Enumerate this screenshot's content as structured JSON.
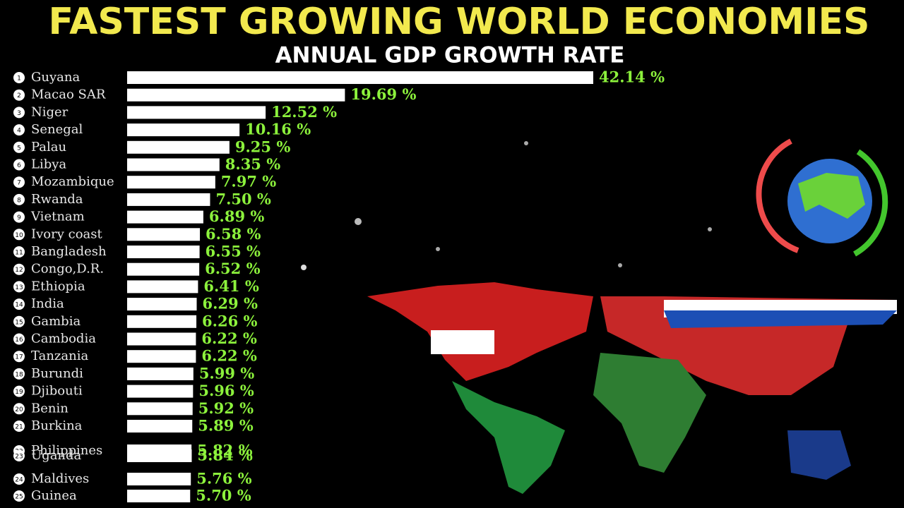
{
  "chart_data": {
    "type": "bar",
    "orientation": "horizontal",
    "title": "FASTEST GROWING WORLD ECONOMIES",
    "subtitle": "ANNUAL GDP GROWTH RATE",
    "ranks": [
      1,
      2,
      3,
      4,
      5,
      6,
      7,
      8,
      9,
      10,
      11,
      12,
      13,
      14,
      15,
      16,
      17,
      18,
      19,
      20,
      21,
      22,
      23,
      24,
      25
    ],
    "categories": [
      "Guyana",
      "Macao SAR",
      "Niger",
      "Senegal",
      "Palau",
      "Libya",
      "Mozambique",
      "Rwanda",
      "Vietnam",
      "Ivory coast",
      "Bangladesh",
      "Congo,D.R.",
      "Ethiopia",
      "India",
      "Gambia",
      "Cambodia",
      "Tanzania",
      "Burundi",
      "Djibouti",
      "Benin",
      "Burkina",
      "Philippines",
      "Uganda",
      "Maldives",
      "Guinea"
    ],
    "values": [
      42.14,
      19.69,
      12.52,
      10.16,
      9.25,
      8.35,
      7.97,
      7.5,
      6.89,
      6.58,
      6.55,
      6.52,
      6.41,
      6.29,
      6.26,
      6.22,
      6.22,
      5.99,
      5.96,
      5.92,
      5.89,
      5.82,
      5.84,
      5.76,
      5.7
    ],
    "value_labels": [
      "42.14 %",
      "19.69 %",
      "12.52 %",
      "10.16 %",
      "9.25 %",
      "8.35 %",
      "7.97 %",
      "7.50 %",
      "6.89 %",
      "6.58 %",
      "6.55 %",
      "6.52 %",
      "6.41 %",
      "6.29 %",
      "6.26 %",
      "6.22 %",
      "6.22 %",
      "5.99 %",
      "5.96 %",
      "5.92 %",
      "5.89 %",
      "5.82 %",
      "5.84 %",
      "5.76 %",
      "5.70 %"
    ],
    "color": "#ffffff",
    "title_color": "#f2e94e",
    "label_color": "#8cf23c"
  }
}
